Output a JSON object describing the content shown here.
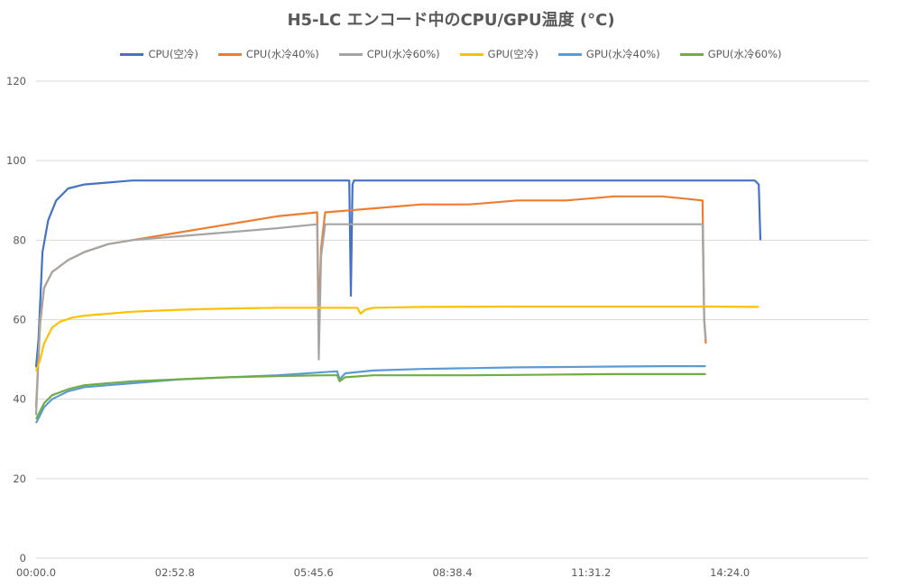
{
  "chart_data": {
    "type": "line",
    "title": "H5-LC エンコード中のCPU/GPU温度 (°C)",
    "xlabel": "",
    "ylabel": "",
    "ylim": [
      0,
      120
    ],
    "yticks": [
      0,
      20,
      40,
      60,
      80,
      100,
      120
    ],
    "xlim": [
      "00:00.0",
      "17:16.8"
    ],
    "xticks": [
      "00:00.0",
      "02:52.8",
      "05:45.6",
      "08:38.4",
      "11:31.2",
      "14:24.0"
    ],
    "grid": true,
    "legend_position": "top",
    "series": [
      {
        "name": "CPU(空冷)",
        "color": "#4472C4",
        "x": [
          "00:00.0",
          "00:03.0",
          "00:08.0",
          "00:15.0",
          "00:25.0",
          "00:40.0",
          "01:00.0",
          "02:00.0",
          "04:00.0",
          "06:00.0",
          "06:30.0",
          "06:32.0",
          "06:34.0",
          "06:36.0",
          "06:40.0",
          "08:00.0",
          "10:00.0",
          "12:00.0",
          "14:00.0",
          "14:55.0",
          "15:00.0",
          "15:02.0"
        ],
        "y": [
          48,
          55,
          77,
          85,
          90,
          93,
          94,
          95,
          95,
          95,
          95,
          66,
          94,
          95,
          95,
          95,
          95,
          95,
          95,
          95,
          94,
          80
        ]
      },
      {
        "name": "CPU(水冷40%)",
        "color": "#ED7D31",
        "x": [
          "00:00.0",
          "00:05.0",
          "00:10.0",
          "00:20.0",
          "00:40.0",
          "01:00.0",
          "01:30.0",
          "02:00.0",
          "03:00.0",
          "04:00.0",
          "05:00.0",
          "05:50.0",
          "05:52.0",
          "05:55.0",
          "06:00.0",
          "07:00.0",
          "08:00.0",
          "09:00.0",
          "10:00.0",
          "11:00.0",
          "12:00.0",
          "13:00.0",
          "13:50.0",
          "13:52.0",
          "13:54.0"
        ],
        "y": [
          38,
          59,
          68,
          72,
          75,
          77,
          79,
          80,
          82,
          84,
          86,
          87,
          60,
          78,
          87,
          88,
          89,
          89,
          90,
          90,
          91,
          91,
          90,
          60,
          54
        ]
      },
      {
        "name": "CPU(水冷60%)",
        "color": "#A5A5A5",
        "x": [
          "00:00.0",
          "00:05.0",
          "00:10.0",
          "00:20.0",
          "00:40.0",
          "01:00.0",
          "01:30.0",
          "02:00.0",
          "03:00.0",
          "04:00.0",
          "05:00.0",
          "05:50.0",
          "05:52.0",
          "05:55.0",
          "06:00.0",
          "07:00.0",
          "08:00.0",
          "09:00.0",
          "10:00.0",
          "11:00.0",
          "12:00.0",
          "13:00.0",
          "13:50.0",
          "13:52.0",
          "13:54.0"
        ],
        "y": [
          36,
          60,
          68,
          72,
          75,
          77,
          79,
          80,
          81,
          82,
          83,
          84,
          50,
          76,
          84,
          84,
          84,
          84,
          84,
          84,
          84,
          84,
          84,
          60,
          55
        ]
      },
      {
        "name": "GPU(空冷)",
        "color": "#FFC000",
        "x": [
          "00:00.0",
          "00:05.0",
          "00:10.0",
          "00:20.0",
          "00:30.0",
          "00:45.0",
          "01:00.0",
          "01:30.0",
          "02:00.0",
          "03:00.0",
          "04:00.0",
          "05:00.0",
          "06:00.0",
          "06:40.0",
          "06:44.0",
          "06:50.0",
          "07:00.0",
          "08:00.0",
          "10:00.0",
          "12:00.0",
          "14:00.0",
          "15:00.0"
        ],
        "y": [
          47,
          50,
          54,
          58,
          59.5,
          60.5,
          61,
          61.5,
          62,
          62.5,
          62.8,
          63,
          63,
          63,
          61.5,
          62.5,
          63,
          63.2,
          63.3,
          63.3,
          63.3,
          63.2
        ]
      },
      {
        "name": "GPU(水冷40%)",
        "color": "#5B9BD5",
        "x": [
          "00:00.0",
          "00:05.0",
          "00:10.0",
          "00:20.0",
          "00:40.0",
          "01:00.0",
          "01:30.0",
          "02:00.0",
          "03:00.0",
          "04:00.0",
          "05:00.0",
          "06:00.0",
          "06:15.0",
          "06:18.0",
          "06:25.0",
          "07:00.0",
          "08:00.0",
          "09:00.0",
          "10:00.0",
          "11:00.0",
          "12:00.0",
          "13:00.0",
          "13:54.0"
        ],
        "y": [
          34,
          36,
          38,
          40,
          42,
          43,
          43.5,
          44,
          45,
          45.5,
          46,
          46.8,
          47,
          45,
          46.5,
          47.2,
          47.6,
          47.8,
          48,
          48.1,
          48.2,
          48.3,
          48.3
        ]
      },
      {
        "name": "GPU(水冷60%)",
        "color": "#70AD47",
        "x": [
          "00:00.0",
          "00:05.0",
          "00:10.0",
          "00:20.0",
          "00:40.0",
          "01:00.0",
          "01:30.0",
          "02:00.0",
          "03:00.0",
          "04:00.0",
          "05:00.0",
          "06:00.0",
          "06:15.0",
          "06:18.0",
          "06:25.0",
          "07:00.0",
          "08:00.0",
          "09:00.0",
          "10:00.0",
          "11:00.0",
          "12:00.0",
          "13:00.0",
          "13:54.0"
        ],
        "y": [
          35,
          37,
          39,
          41,
          42.5,
          43.5,
          44,
          44.5,
          45,
          45.5,
          45.8,
          46,
          46,
          44.5,
          45.5,
          46,
          46,
          46,
          46.1,
          46.2,
          46.3,
          46.3,
          46.3
        ]
      }
    ]
  }
}
